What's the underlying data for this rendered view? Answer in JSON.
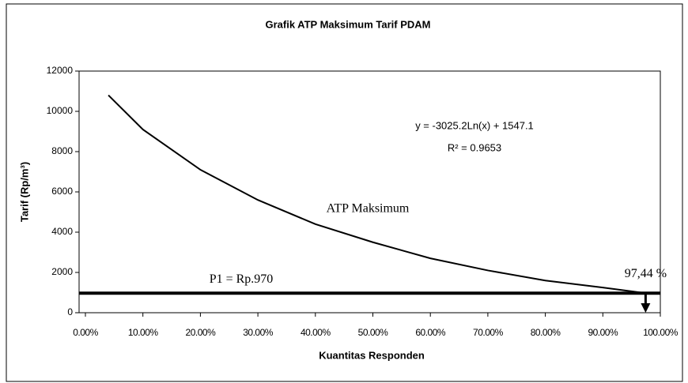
{
  "chart_data": {
    "type": "line",
    "title": "Grafik ATP Maksimum Tarif PDAM",
    "x_label": "Kuantitas Responden",
    "y_label": "Tarif (Rp/m³)",
    "x": [
      4,
      10,
      20,
      30,
      40,
      50,
      60,
      70,
      80,
      90,
      97.44
    ],
    "series": [
      {
        "name": "ATP Maksimum",
        "color": "#000000",
        "values": [
          10800,
          9100,
          7100,
          5600,
          4400,
          3500,
          2700,
          2100,
          1600,
          1250,
          970
        ]
      }
    ],
    "xlim": [
      0,
      100
    ],
    "ylim": [
      0,
      12000
    ],
    "xticks": [
      {
        "value": 0,
        "label": "0.00%"
      },
      {
        "value": 10,
        "label": "10.00%"
      },
      {
        "value": 20,
        "label": "20.00%"
      },
      {
        "value": 30,
        "label": "30.00%"
      },
      {
        "value": 40,
        "label": "40.00%"
      },
      {
        "value": 50,
        "label": "50.00%"
      },
      {
        "value": 60,
        "label": "60.00%"
      },
      {
        "value": 70,
        "label": "70.00%"
      },
      {
        "value": 80,
        "label": "80.00%"
      },
      {
        "value": 90,
        "label": "90.00%"
      },
      {
        "value": 100,
        "label": "100.00%"
      }
    ],
    "yticks": [
      0,
      2000,
      4000,
      6000,
      8000,
      10000,
      12000
    ],
    "annotations": {
      "equation": "y = -3025.2Ln(x) + 1547.1",
      "r_squared": "R² = 0.9653",
      "threshold_label": "P1 = Rp.970",
      "threshold_value": 970,
      "intersection_label": "97,44 %",
      "intersection_x": 97.44
    }
  }
}
